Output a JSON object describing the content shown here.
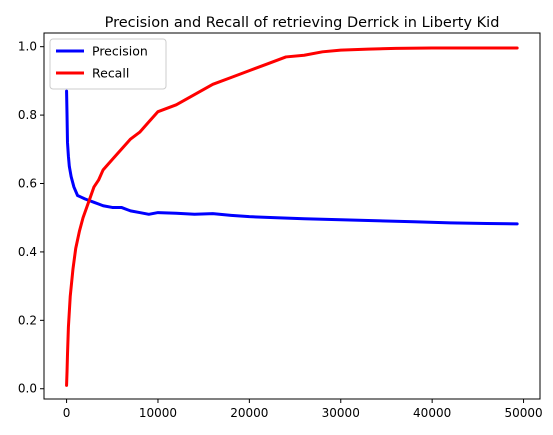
{
  "chart_data": {
    "type": "line",
    "title": "Precision and Recall of retrieving Derrick in Liberty Kid",
    "xlabel": "",
    "ylabel": "",
    "xlim": [
      -2470,
      51800
    ],
    "ylim": [
      -0.03,
      1.04
    ],
    "xticks": [
      0,
      10000,
      20000,
      30000,
      40000,
      50000
    ],
    "xtick_labels": [
      "0",
      "10000",
      "20000",
      "30000",
      "40000",
      "50000"
    ],
    "yticks": [
      0.0,
      0.2,
      0.4,
      0.6,
      0.8,
      1.0
    ],
    "ytick_labels": [
      "0.0",
      "0.2",
      "0.4",
      "0.6",
      "0.8",
      "1.0"
    ],
    "grid": false,
    "legend_position": "top-left",
    "series": [
      {
        "name": "Precision",
        "color": "#0000ff",
        "x": [
          0,
          50,
          100,
          200,
          300,
          500,
          800,
          1200,
          1600,
          2000,
          2500,
          3000,
          3500,
          4000,
          5000,
          6000,
          7000,
          8000,
          9000,
          10000,
          12000,
          14000,
          16000,
          18000,
          20000,
          23000,
          26000,
          30000,
          34000,
          38000,
          42000,
          46000,
          49300
        ],
        "y": [
          0.87,
          0.8,
          0.72,
          0.68,
          0.65,
          0.62,
          0.59,
          0.565,
          0.56,
          0.555,
          0.55,
          0.545,
          0.54,
          0.535,
          0.53,
          0.53,
          0.52,
          0.515,
          0.51,
          0.515,
          0.513,
          0.51,
          0.512,
          0.507,
          0.503,
          0.5,
          0.497,
          0.494,
          0.491,
          0.488,
          0.485,
          0.483,
          0.482
        ]
      },
      {
        "name": "Recall",
        "color": "#ff0000",
        "x": [
          0,
          50,
          100,
          200,
          400,
          700,
          1000,
          1400,
          1800,
          2200,
          2600,
          3000,
          3500,
          4000,
          5000,
          6000,
          7000,
          8000,
          9000,
          10000,
          12000,
          14000,
          16000,
          18000,
          20000,
          22000,
          24000,
          26000,
          28000,
          30000,
          33000,
          36000,
          40000,
          45000,
          49300
        ],
        "y": [
          0.01,
          0.05,
          0.1,
          0.18,
          0.27,
          0.35,
          0.41,
          0.46,
          0.5,
          0.53,
          0.56,
          0.59,
          0.61,
          0.64,
          0.67,
          0.7,
          0.73,
          0.75,
          0.78,
          0.81,
          0.83,
          0.86,
          0.89,
          0.91,
          0.93,
          0.95,
          0.97,
          0.975,
          0.985,
          0.99,
          0.993,
          0.995,
          0.996,
          0.996,
          0.996
        ]
      }
    ]
  }
}
